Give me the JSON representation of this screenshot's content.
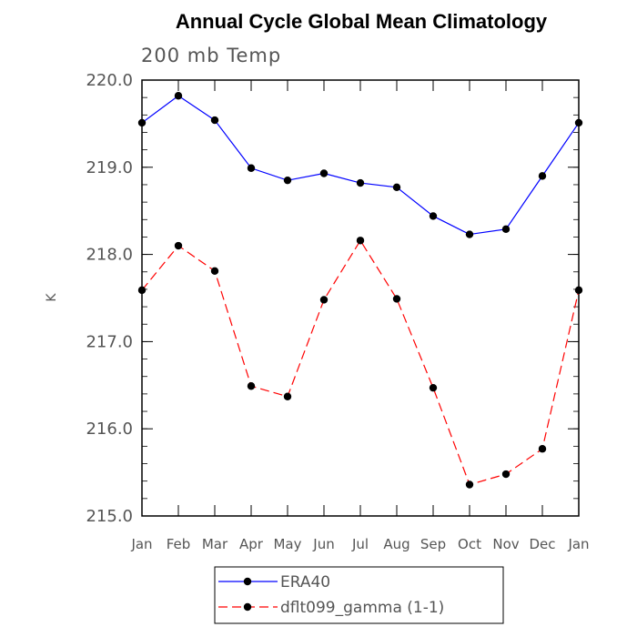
{
  "chart_data": {
    "type": "line",
    "title": "Annual Cycle Global Mean Climatology",
    "subtitle": "200 mb Temp",
    "xlabel": "",
    "ylabel": "K",
    "categories": [
      "Jan",
      "Feb",
      "Mar",
      "Apr",
      "May",
      "Jun",
      "Jul",
      "Aug",
      "Sep",
      "Oct",
      "Nov",
      "Dec",
      "Jan"
    ],
    "ylim": [
      215.0,
      220.0
    ],
    "yticks": [
      215.0,
      216.0,
      217.0,
      218.0,
      219.0,
      220.0
    ],
    "ytick_labels": [
      "215.0",
      "216.0",
      "217.0",
      "218.0",
      "219.0",
      "220.0"
    ],
    "series": [
      {
        "name": "ERA40",
        "color": "#0000ff",
        "dash": "solid",
        "values": [
          219.51,
          219.82,
          219.54,
          218.99,
          218.85,
          218.93,
          218.82,
          218.77,
          218.44,
          218.23,
          218.29,
          218.9,
          219.51
        ]
      },
      {
        "name": "dflt099_gamma (1-1)",
        "color": "#ff0000",
        "dash": "dashed",
        "values": [
          217.59,
          218.1,
          217.81,
          216.49,
          216.37,
          217.48,
          218.16,
          217.49,
          216.47,
          215.36,
          215.48,
          215.77,
          217.59
        ]
      }
    ],
    "grid": false,
    "legend_position": "bottom"
  }
}
